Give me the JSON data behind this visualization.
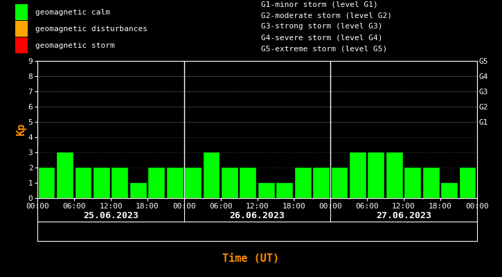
{
  "background_color": "#000000",
  "plot_bg_color": "#000000",
  "bar_color": "#00ff00",
  "bar_edge_color": "#000000",
  "text_color": "#ffffff",
  "ylabel_color": "#ff8c00",
  "xlabel_color": "#ff8c00",
  "ylabel": "Kp",
  "xlabel": "Time (UT)",
  "ylim": [
    0,
    9
  ],
  "yticks": [
    0,
    1,
    2,
    3,
    4,
    5,
    6,
    7,
    8,
    9
  ],
  "right_labels": [
    "G5",
    "G4",
    "G3",
    "G2",
    "G1"
  ],
  "right_label_yticks": [
    9,
    8,
    7,
    6,
    5
  ],
  "days": [
    "25.06.2023",
    "26.06.2023",
    "27.06.2023"
  ],
  "kp_values": [
    [
      2,
      3,
      2,
      2,
      2,
      1,
      2,
      2
    ],
    [
      2,
      3,
      2,
      2,
      1,
      1,
      2,
      2
    ],
    [
      2,
      3,
      3,
      3,
      2,
      2,
      1,
      2
    ]
  ],
  "time_labels": [
    "00:00",
    "06:00",
    "12:00",
    "18:00",
    "00:00"
  ],
  "legend_items": [
    {
      "label": "geomagnetic calm",
      "color": "#00ff00"
    },
    {
      "label": "geomagnetic disturbances",
      "color": "#ffa500"
    },
    {
      "label": "geomagnetic storm",
      "color": "#ff0000"
    }
  ],
  "storm_labels": [
    "G1-minor storm (level G1)",
    "G2-moderate storm (level G2)",
    "G3-strong storm (level G3)",
    "G4-severe storm (level G4)",
    "G5-extreme storm (level G5)"
  ],
  "font_family": "monospace",
  "font_size": 8,
  "bar_width": 0.9
}
